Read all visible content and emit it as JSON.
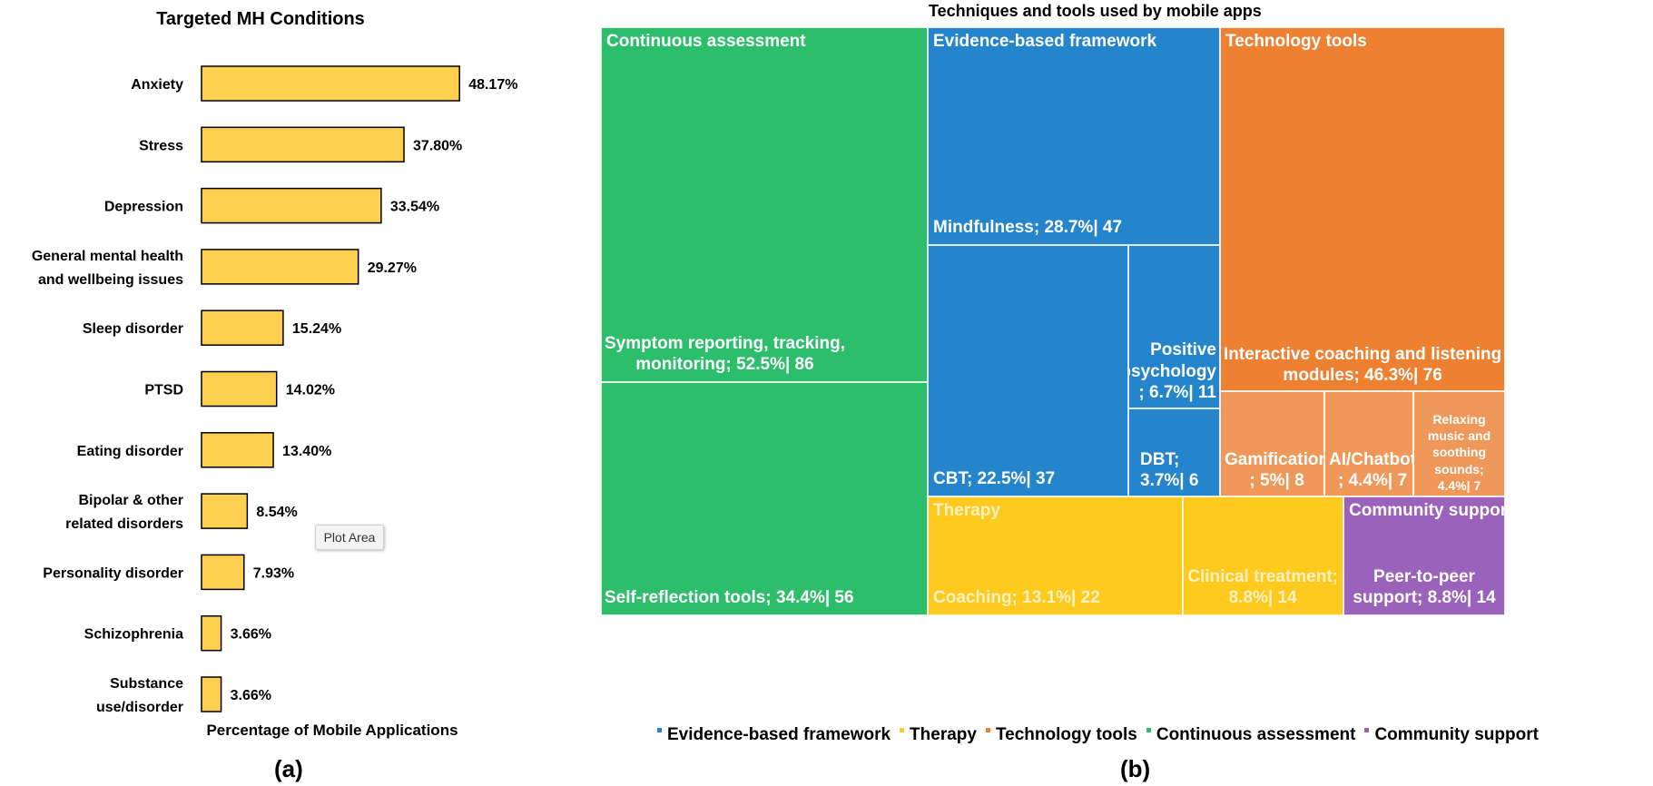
{
  "chart_data": [
    {
      "type": "bar",
      "orientation": "horizontal",
      "title": "Targeted MH Conditions",
      "xlabel": "Percentage of Mobile Applications",
      "ylabel": "",
      "xlim": [
        0,
        100
      ],
      "categories": [
        [
          "Anxiety"
        ],
        [
          "Stress"
        ],
        [
          "Depression"
        ],
        [
          "General mental health",
          "and wellbeing issues"
        ],
        [
          "Sleep disorder"
        ],
        [
          "PTSD"
        ],
        [
          "Eating disorder"
        ],
        [
          "Bipolar & other",
          "related disorders"
        ],
        [
          "Personality disorder"
        ],
        [
          "Schizophrenia"
        ],
        [
          "Substance",
          "use/disorder"
        ]
      ],
      "values": [
        48.17,
        37.8,
        33.54,
        29.27,
        15.24,
        14.02,
        13.4,
        8.54,
        7.93,
        3.66,
        3.66
      ],
      "data_labels": [
        "48.17%",
        "37.80%",
        "33.54%",
        "29.27%",
        "15.24%",
        "14.02%",
        "13.40%",
        "8.54%",
        "7.93%",
        "3.66%",
        "3.66%"
      ],
      "bar_color": "#FFD04F",
      "bar_edge_color": "#000000",
      "tooltip": "Plot Area",
      "panel_label": "(a)"
    },
    {
      "type": "treemap",
      "title": "Techniques and tools used by mobile apps",
      "panel_label": "(b)",
      "groups": [
        {
          "name": "Continuous assessment",
          "color": "#2DBE6C",
          "children": [
            {
              "label": [
                "Symptom reporting, tracking,",
                "monitoring; 52.5%| 86"
              ],
              "percent": 52.5,
              "count": 86
            },
            {
              "label": [
                "Self-reflection tools; 34.4%| 56"
              ],
              "percent": 34.4,
              "count": 56
            }
          ]
        },
        {
          "name": "Evidence-based framework",
          "color": "#2484CC",
          "children": [
            {
              "label": [
                "Mindfulness; 28.7%| 47"
              ],
              "percent": 28.7,
              "count": 47
            },
            {
              "label": [
                "CBT; 22.5%| 37"
              ],
              "percent": 22.5,
              "count": 37
            },
            {
              "label": [
                "Positive",
                "psychology",
                "; 6.7%| 11"
              ],
              "percent": 6.7,
              "count": 11
            },
            {
              "label": [
                "DBT;",
                "3.7%| 6"
              ],
              "percent": 3.7,
              "count": 6
            }
          ]
        },
        {
          "name": "Technology tools",
          "color": "#EE8032",
          "children": [
            {
              "label": [
                "Interactive coaching and listening",
                "modules; 46.3%| 76"
              ],
              "percent": 46.3,
              "count": 76
            },
            {
              "label": [
                "Gamification",
                "; 5%| 8"
              ],
              "percent": 5,
              "count": 8
            },
            {
              "label": [
                "AI/Chatbot",
                "; 4.4%| 7"
              ],
              "percent": 4.4,
              "count": 7
            },
            {
              "label": [
                "Relaxing",
                "music and",
                "soothing",
                "sounds;",
                "4.4%| 7"
              ],
              "percent": 4.4,
              "count": 7
            }
          ]
        },
        {
          "name": "Therapy",
          "color": "#FFCA1E",
          "children": [
            {
              "label": [
                "Coaching; 13.1%| 22"
              ],
              "percent": 13.1,
              "count": 22
            },
            {
              "label": [
                "Clinical treatment;",
                "8.8%| 14"
              ],
              "percent": 8.8,
              "count": 14
            }
          ]
        },
        {
          "name": "Community support",
          "color": "#9A62BA",
          "children": [
            {
              "label": [
                "Peer-to-peer",
                "support; 8.8%| 14"
              ],
              "percent": 8.8,
              "count": 14
            }
          ]
        }
      ],
      "legend": [
        {
          "name": "Evidence-based framework",
          "color": "#2484CC"
        },
        {
          "name": "Therapy",
          "color": "#FFCA1E"
        },
        {
          "name": "Technology tools",
          "color": "#EE8032"
        },
        {
          "name": "Continuous assessment",
          "color": "#2DBE6C"
        },
        {
          "name": "Community support",
          "color": "#9A62BA"
        }
      ]
    }
  ]
}
